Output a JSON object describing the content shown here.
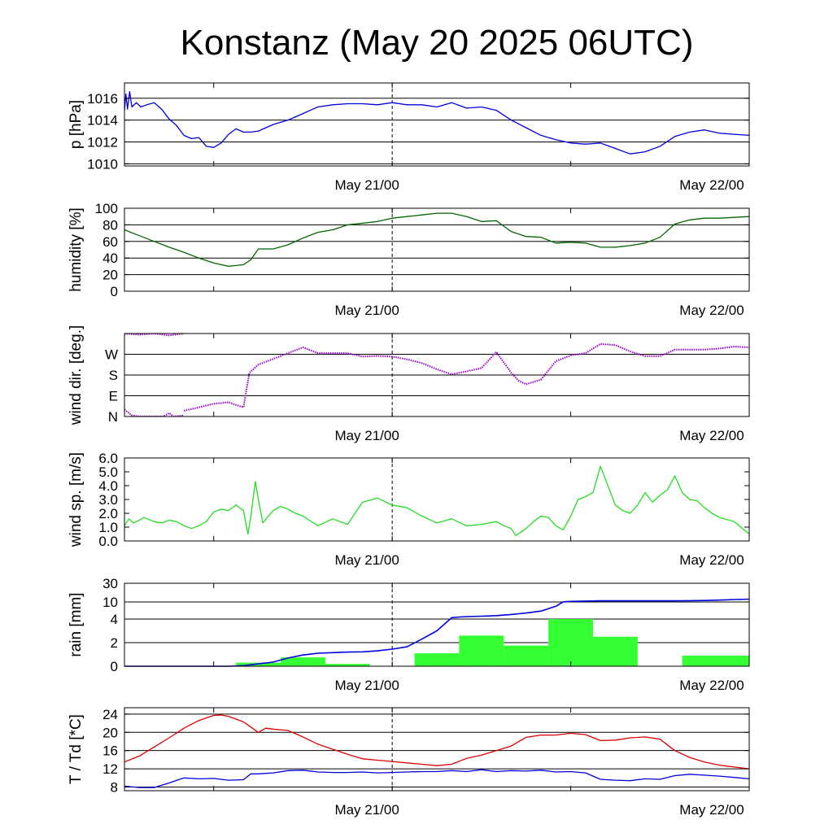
{
  "title": "Konstanz (May 20 2025 06UTC)",
  "time_axis": {
    "start_hour": 0,
    "end_hour": 42,
    "tick_hours": [
      6,
      18,
      30
    ],
    "labels": [
      {
        "hour": 18,
        "text": "May 21/00"
      },
      {
        "hour": 42,
        "text": "May 22/00"
      }
    ],
    "dashed_hour": 18
  },
  "chart_data": [
    {
      "id": "pressure",
      "type": "line",
      "ylabel": "p [hPa]",
      "ylim": [
        1009.8,
        1017.4
      ],
      "yticks": [
        1010,
        1012,
        1014,
        1016
      ],
      "yticklabels": [
        "1010",
        "1012",
        "1014",
        "1016"
      ],
      "gridlines": [
        1010,
        1012,
        1014,
        1016
      ],
      "color": "#0000dd",
      "x": [
        0,
        0.1,
        0.2,
        0.35,
        0.5,
        0.8,
        1.1,
        1.5,
        2,
        2.5,
        3,
        3.5,
        4,
        4.5,
        5,
        5.5,
        6,
        6.5,
        7,
        7.5,
        8,
        8.5,
        9,
        10,
        11,
        12,
        13,
        14,
        15,
        16,
        17,
        18,
        19,
        20,
        21,
        22,
        23,
        24,
        25,
        26,
        27,
        28,
        29,
        30,
        31,
        32,
        33,
        34,
        35,
        36,
        37,
        38,
        39,
        40,
        41,
        42
      ],
      "y": [
        1014.9,
        1016.4,
        1015.0,
        1016.6,
        1015.2,
        1015.6,
        1015.2,
        1015.4,
        1015.6,
        1015.0,
        1014.1,
        1013.5,
        1012.6,
        1012.3,
        1012.4,
        1011.6,
        1011.5,
        1011.9,
        1012.7,
        1013.2,
        1012.9,
        1012.9,
        1013.0,
        1013.6,
        1014.0,
        1014.6,
        1015.2,
        1015.4,
        1015.5,
        1015.5,
        1015.4,
        1015.6,
        1015.4,
        1015.4,
        1015.2,
        1015.6,
        1015.1,
        1015.2,
        1014.9,
        1014.0,
        1013.3,
        1012.6,
        1012.2,
        1011.9,
        1011.8,
        1011.9,
        1011.4,
        1010.9,
        1011.1,
        1011.6,
        1012.5,
        1012.9,
        1013.1,
        1012.8,
        1012.7,
        1012.6
      ]
    },
    {
      "id": "humidity",
      "type": "line",
      "ylabel": "humidity [%]",
      "ylim": [
        0,
        100
      ],
      "yticks": [
        0,
        20,
        40,
        60,
        80,
        100
      ],
      "yticklabels": [
        "0",
        "20",
        "40",
        "60",
        "80",
        "100"
      ],
      "gridlines": [
        20,
        40,
        60,
        80,
        100
      ],
      "color": "#006600",
      "x": [
        0,
        1,
        2,
        3,
        4,
        5,
        6,
        7,
        8,
        8.5,
        9,
        10,
        11,
        12,
        13,
        14,
        15,
        16,
        17,
        18,
        19,
        20,
        21,
        22,
        23,
        24,
        25,
        26,
        27,
        28,
        29,
        30,
        31,
        32,
        33,
        34,
        35,
        36,
        37,
        38,
        39,
        40,
        41,
        42
      ],
      "y": [
        74,
        67,
        60,
        53,
        47,
        40,
        34,
        30,
        32,
        38,
        51,
        51,
        56,
        64,
        71,
        74,
        80,
        82,
        84,
        88,
        90,
        92,
        94,
        94,
        90,
        84,
        85,
        72,
        66,
        65,
        58,
        59,
        58,
        53,
        53,
        55,
        58,
        65,
        81,
        86,
        88,
        88,
        89,
        90
      ]
    },
    {
      "id": "wind_direction",
      "type": "scatter",
      "ylabel": "wind dir. [deg.]",
      "ylim": [
        0,
        360
      ],
      "yticks": [
        0,
        90,
        180,
        270
      ],
      "yticklabels": [
        "N",
        "E",
        "S",
        "W"
      ],
      "gridlines": [
        90,
        180,
        270
      ],
      "color": "#9900cc",
      "segments": [
        {
          "x": [
            0,
            1,
            2,
            3,
            4
          ],
          "y": [
            360,
            355,
            360,
            352,
            360
          ]
        },
        {
          "x": [
            0,
            0.5,
            1,
            2,
            2.6,
            3,
            3.3,
            4
          ],
          "y": [
            30,
            5,
            0,
            0,
            0,
            15,
            0,
            5
          ]
        },
        {
          "x": [
            4,
            5,
            6,
            7,
            7.5,
            8,
            8.2,
            8.4,
            9,
            10,
            11,
            12,
            13,
            14,
            15,
            16,
            17,
            18,
            19,
            20,
            21,
            22,
            23,
            24,
            25,
            26,
            26.5,
            27,
            28,
            29,
            30,
            31,
            32,
            33,
            34,
            35,
            36,
            37,
            38,
            39,
            40,
            41,
            42
          ],
          "y": [
            25,
            40,
            55,
            62,
            50,
            40,
            115,
            190,
            225,
            250,
            275,
            300,
            275,
            275,
            275,
            260,
            263,
            260,
            248,
            232,
            205,
            183,
            196,
            210,
            280,
            190,
            155,
            140,
            160,
            240,
            265,
            275,
            315,
            310,
            282,
            262,
            262,
            290,
            290,
            290,
            295,
            303,
            300
          ]
        }
      ]
    },
    {
      "id": "wind_speed",
      "type": "line",
      "ylabel": "wind sp. [m/s]",
      "ylim": [
        0,
        6
      ],
      "yticks": [
        0,
        1,
        2,
        3,
        4,
        5,
        6
      ],
      "yticklabels": [
        "0.0",
        "1.0",
        "2.0",
        "3.0",
        "4.0",
        "5.0",
        "6.0"
      ],
      "gridlines": [],
      "color": "#22dd22",
      "x": [
        0,
        0.3,
        0.6,
        1,
        1.3,
        2,
        2.5,
        3,
        3.5,
        4,
        4.5,
        5,
        5.5,
        6,
        6.5,
        7,
        7.5,
        8,
        8.3,
        8.5,
        8.8,
        9,
        9.3,
        9.6,
        10,
        10.5,
        11,
        11.5,
        12,
        13,
        14,
        15,
        16,
        17,
        18,
        19,
        20,
        21,
        22,
        23,
        24,
        25,
        25.5,
        26,
        26.3,
        26.6,
        27,
        27.5,
        28,
        28.5,
        29,
        29.5,
        30,
        30.5,
        31,
        31.5,
        32,
        32.5,
        33,
        33.5,
        34,
        34.5,
        35,
        35.5,
        36,
        36.5,
        37,
        37.5,
        38,
        38.5,
        39,
        39.5,
        40,
        41,
        42
      ],
      "y": [
        1.1,
        1.6,
        1.3,
        1.5,
        1.7,
        1.4,
        1.3,
        1.5,
        1.4,
        1.1,
        0.9,
        1.1,
        1.4,
        2.1,
        2.3,
        2.2,
        2.6,
        2.2,
        0.5,
        1.8,
        4.3,
        3.0,
        1.3,
        1.7,
        2.2,
        2.5,
        2.3,
        2.0,
        1.8,
        1.1,
        1.6,
        1.2,
        2.8,
        3.1,
        2.6,
        2.4,
        1.8,
        1.3,
        1.6,
        1.1,
        1.2,
        1.4,
        1.1,
        0.9,
        0.4,
        0.6,
        0.9,
        1.4,
        1.8,
        1.7,
        1.1,
        0.8,
        1.8,
        3.0,
        3.2,
        3.5,
        5.4,
        4.0,
        2.6,
        2.2,
        2.0,
        2.6,
        3.5,
        2.8,
        3.3,
        3.7,
        4.7,
        3.5,
        3.0,
        2.9,
        2.4,
        2.0,
        1.7,
        1.4,
        0.5
      ]
    },
    {
      "id": "rain",
      "type": "bar+line",
      "ylabel": "rain [mm]",
      "ylim": [
        0,
        30
      ],
      "yticks": [
        0,
        2,
        4,
        10,
        30
      ],
      "yticklabels": [
        "0",
        "2",
        "4",
        "10",
        "30"
      ],
      "gridlines": [
        2,
        4,
        10
      ],
      "scale_note": "non-linear",
      "bar_color": "#33ff33",
      "line_color": "#0000dd",
      "bars": [
        {
          "start": 7.5,
          "end": 10.5,
          "value": 0.3
        },
        {
          "start": 10.5,
          "end": 13.5,
          "value": 0.75
        },
        {
          "start": 13.5,
          "end": 16.5,
          "value": 0.2
        },
        {
          "start": 19.5,
          "end": 22.5,
          "value": 1.1
        },
        {
          "start": 22.5,
          "end": 25.5,
          "value": 2.6
        },
        {
          "start": 25.5,
          "end": 28.5,
          "value": 1.75
        },
        {
          "start": 28.5,
          "end": 31.5,
          "value": 4.0
        },
        {
          "start": 31.5,
          "end": 34.5,
          "value": 2.5
        },
        {
          "start": 37.5,
          "end": 42,
          "value": 0.9
        }
      ],
      "line_x": [
        0,
        7,
        8,
        9,
        10,
        11,
        12,
        13,
        14,
        15,
        16,
        17,
        18,
        19,
        20,
        21,
        22,
        22.5,
        23,
        24,
        25,
        26,
        27,
        28,
        29,
        29.5,
        30,
        31,
        32,
        33,
        34,
        35,
        36,
        37,
        38,
        39,
        40,
        41,
        42
      ],
      "line_y": [
        0,
        0,
        0.05,
        0.2,
        0.35,
        0.7,
        0.95,
        1.1,
        1.15,
        1.2,
        1.22,
        1.3,
        1.45,
        1.65,
        2.3,
        3.0,
        4.5,
        4.7,
        4.85,
        5.0,
        5.2,
        5.6,
        6.1,
        6.8,
        8.5,
        10.2,
        10.6,
        11.0,
        11.2,
        11.2,
        11.2,
        11.2,
        11.2,
        11.2,
        11.4,
        11.6,
        12.0,
        12.6,
        13.0
      ]
    },
    {
      "id": "temperature",
      "type": "line",
      "ylabel": "T / Td [*C]",
      "ylim": [
        7.2,
        25.4
      ],
      "yticks": [
        8,
        12,
        16,
        20,
        24
      ],
      "yticklabels": [
        "8",
        "12",
        "16",
        "20",
        "24"
      ],
      "gridlines": [
        8,
        12,
        16,
        20,
        24
      ],
      "series": [
        {
          "id": "T",
          "color": "#dd0000",
          "x": [
            0,
            1,
            2,
            3,
            4,
            5,
            6,
            6.5,
            7,
            8,
            9,
            9.5,
            10,
            11,
            12,
            13,
            14,
            15,
            16,
            17,
            18,
            19,
            20,
            21,
            22,
            23,
            24,
            25,
            26,
            27,
            28,
            29,
            30,
            31,
            32,
            33,
            34,
            35,
            36,
            37,
            38,
            39,
            40,
            41,
            42
          ],
          "y": [
            13.5,
            14.8,
            16.8,
            18.8,
            20.9,
            22.6,
            23.7,
            23.8,
            23.5,
            22.3,
            20.0,
            20.9,
            20.7,
            20.4,
            19.0,
            17.4,
            16.3,
            15.2,
            14.2,
            13.9,
            13.6,
            13.3,
            13.0,
            12.7,
            13.0,
            14.3,
            15.0,
            16.0,
            17.0,
            18.9,
            19.4,
            19.4,
            19.8,
            19.5,
            18.2,
            18.3,
            18.8,
            19.0,
            18.5,
            16.0,
            14.5,
            13.5,
            12.8,
            12.4,
            12.0
          ]
        },
        {
          "id": "Td",
          "color": "#0000dd",
          "x": [
            0,
            1,
            2,
            3,
            4,
            5,
            6,
            7,
            8,
            8.5,
            9,
            10,
            11,
            12,
            13,
            14,
            15,
            16,
            17,
            18,
            19,
            20,
            21,
            22,
            23,
            24,
            25,
            26,
            27,
            28,
            29,
            30,
            31,
            32,
            33,
            34,
            35,
            36,
            37,
            38,
            39,
            40,
            41,
            42
          ],
          "y": [
            8.2,
            7.9,
            7.9,
            8.9,
            10.0,
            9.8,
            9.9,
            9.5,
            9.6,
            10.9,
            10.9,
            11.1,
            11.6,
            11.7,
            11.3,
            11.2,
            11.2,
            11.3,
            11.1,
            11.2,
            11.3,
            11.4,
            11.4,
            11.6,
            11.4,
            11.8,
            11.4,
            11.6,
            11.5,
            11.7,
            11.3,
            11.4,
            11.1,
            9.7,
            9.5,
            9.4,
            9.8,
            9.7,
            10.5,
            10.8,
            10.6,
            10.4,
            10.1,
            9.8
          ]
        }
      ]
    }
  ]
}
